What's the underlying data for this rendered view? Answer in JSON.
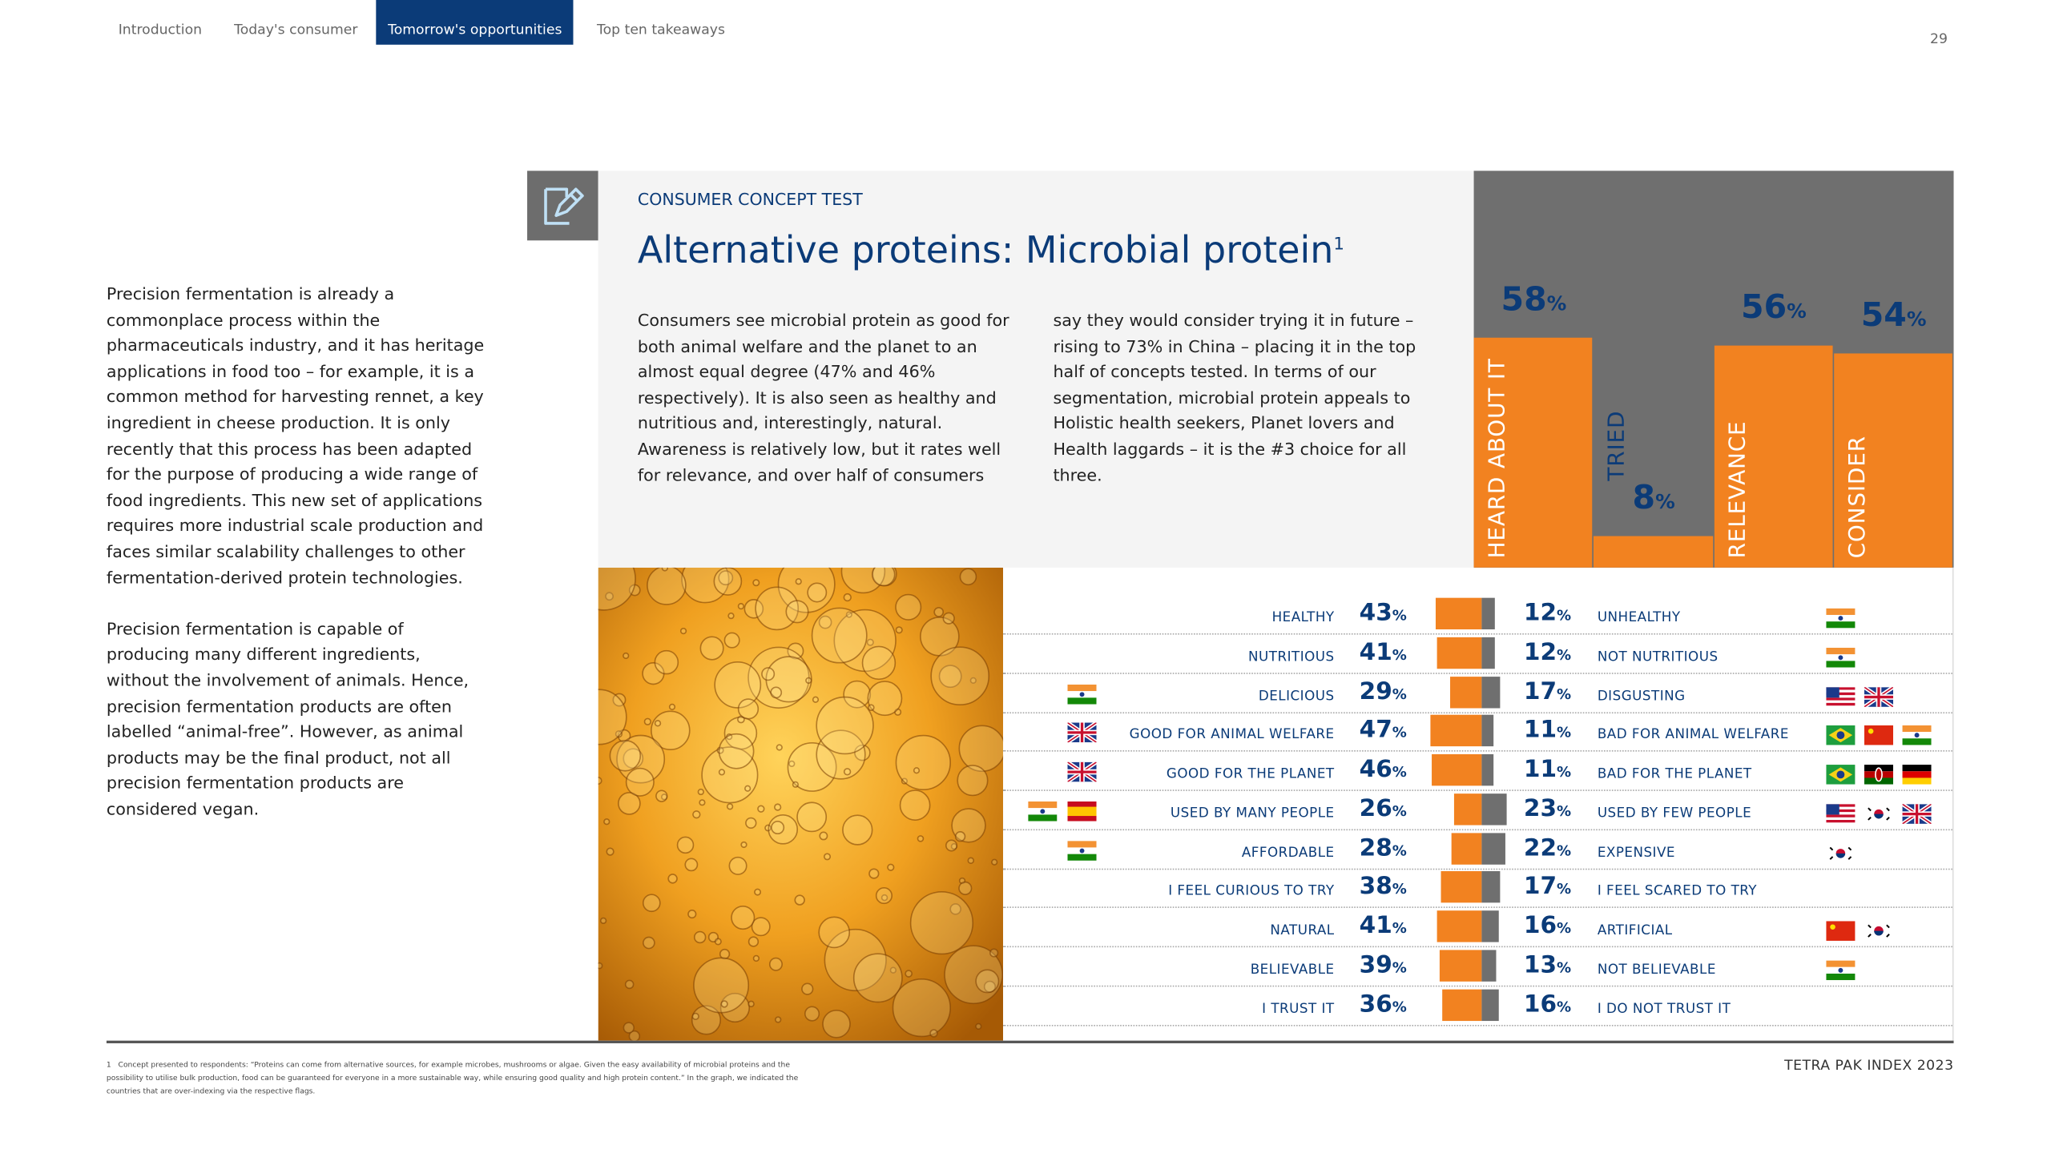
{
  "nav": {
    "tabs": [
      "Introduction",
      "Today's consumer",
      "Tomorrow's opportunities",
      "Top ten takeaways"
    ],
    "active": 2
  },
  "page_number": "29",
  "sidebar": {
    "paragraphs": [
      "Precision fermentation is already a commonplace process within the pharmaceuticals industry, and it has heritage applications in food too – for example, it is a common method for harvesting rennet, a key ingredient in cheese production. It is only recently that this process has been adapted for the purpose of producing a wide range of food ingredients. This new set of applications requires more industrial scale production and faces similar scalability challenges to other fermentation-derived protein technologies.",
      "Precision fermentation is capable of producing many different ingredients, without the involvement of animals. Hence, precision fermentation products are often labelled “animal-free”. However, as animal products may be the final product, not all precision fermentation products are considered vegan."
    ]
  },
  "concept": {
    "eyebrow": "CONSUMER CONCEPT TEST",
    "title": "Alternative proteins: Microbial protein",
    "title_note": "1",
    "body_columns": [
      "Consumers see microbial protein as good for both animal welfare and the planet to an almost equal degree (47% and 46% respectively). It is also seen as healthy and nutritious and, interestingly, natural. Awareness is relatively low, but it rates well for relevance, and over half of consumers",
      "say they would consider trying it in future – rising to 73% in China – placing it in the top half of concepts tested. In terms of our segmentation, microbial protein appeals to Holistic health seekers, Planet lovers and Health laggards – it is the #3 choice for all three."
    ]
  },
  "unit": "%",
  "funnel": {
    "ylim": [
      0,
      100
    ],
    "columns": [
      {
        "label": "HEARD ABOUT IT",
        "value": 58
      },
      {
        "label": "TRIED",
        "value": 8
      },
      {
        "label": "RELEVANCE",
        "value": 56
      },
      {
        "label": "CONSIDER",
        "value": 54
      }
    ]
  },
  "attributes": [
    {
      "positive": "HEALTHY",
      "positive_value": 43,
      "negative_value": 12,
      "negative": "UNHEALTHY"
    },
    {
      "positive": "NUTRITIOUS",
      "positive_value": 41,
      "negative_value": 12,
      "negative": "NOT NUTRITIOUS"
    },
    {
      "positive": "DELICIOUS",
      "positive_value": 29,
      "negative_value": 17,
      "negative": "DISGUSTING"
    },
    {
      "positive": "GOOD FOR ANIMAL WELFARE",
      "positive_value": 47,
      "negative_value": 11,
      "negative": "BAD FOR ANIMAL WELFARE"
    },
    {
      "positive": "GOOD FOR THE PLANET",
      "positive_value": 46,
      "negative_value": 11,
      "negative": "BAD FOR THE PLANET"
    },
    {
      "positive": "USED BY MANY PEOPLE",
      "positive_value": 26,
      "negative_value": 23,
      "negative": "USED BY FEW PEOPLE"
    },
    {
      "positive": "AFFORDABLE",
      "positive_value": 28,
      "negative_value": 22,
      "negative": "EXPENSIVE"
    },
    {
      "positive": "I FEEL CURIOUS TO TRY",
      "positive_value": 38,
      "negative_value": 17,
      "negative": "I FEEL SCARED TO TRY"
    },
    {
      "positive": "NATURAL",
      "positive_value": 41,
      "negative_value": 16,
      "negative": "ARTIFICIAL"
    },
    {
      "positive": "BELIEVABLE",
      "positive_value": 39,
      "negative_value": 13,
      "negative": "NOT BELIEVABLE"
    },
    {
      "positive": "I TRUST IT",
      "positive_value": 36,
      "negative_value": 16,
      "negative": "I DO NOT TRUST IT"
    }
  ],
  "footnote": {
    "marker": "1",
    "text": "Concept presented to respondents: “Proteins can come from alternative sources, for example microbes, mushrooms or algae. Given the easy availability of microbial proteins and the possibility to utilise bulk production, food can be guaranteed for everyone in a more sustainable way, while ensuring good quality and high protein content.” In the graph, we indicated the countries that are over-indexing via the respective flags."
  },
  "brand": "TETRA PAK INDEX 2023"
}
